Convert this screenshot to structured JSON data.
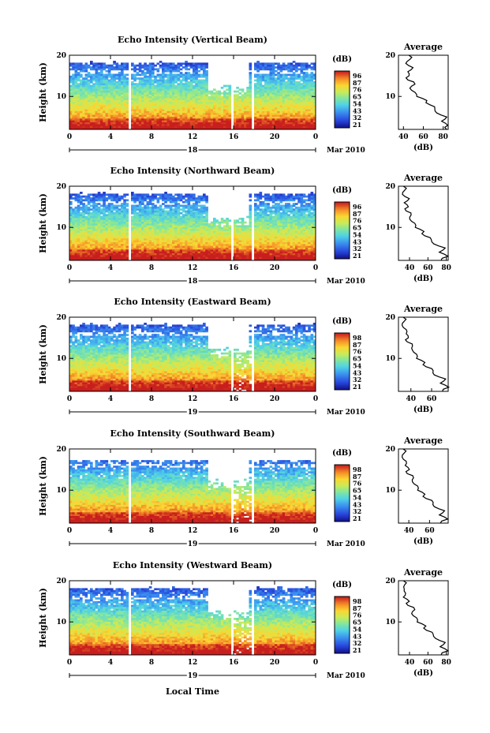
{
  "chart_data": {
    "type": "heatmap",
    "figure_xlabel": "Local Time",
    "panels": [
      {
        "title": "Echo Intensity (Vertical Beam)",
        "ylabel": "Height (km)",
        "yticks": [
          "10",
          "20"
        ],
        "ylim": [
          2,
          20
        ],
        "xticks": [
          "0",
          "4",
          "8",
          "12",
          "16",
          "20",
          "0"
        ],
        "xlim": [
          0,
          24
        ],
        "date_day": "18",
        "date_month": "Mar 2010",
        "colorbar_unit": "(dB)",
        "colorbar_ticks": [
          "96",
          "87",
          "76",
          "65",
          "54",
          "43",
          "32",
          "21"
        ],
        "gaps_hours": [
          5.9,
          15.8,
          17.9
        ],
        "avg_title": "Average",
        "avg_xlabel": "(dB)",
        "avg_xticks": [
          "40",
          "60",
          "80"
        ],
        "avg_xlim": [
          35,
          85
        ],
        "avg_profile": [
          [
            85,
            2
          ],
          [
            83,
            3
          ],
          [
            80,
            4
          ],
          [
            82,
            5
          ],
          [
            75,
            6
          ],
          [
            70,
            7
          ],
          [
            68,
            8
          ],
          [
            62,
            9
          ],
          [
            55,
            10
          ],
          [
            50,
            11
          ],
          [
            48,
            12
          ],
          [
            50,
            13
          ],
          [
            46,
            14
          ],
          [
            44,
            15
          ],
          [
            46,
            16
          ],
          [
            48,
            17
          ],
          [
            44,
            18
          ],
          [
            45,
            19
          ],
          [
            47,
            20
          ]
        ]
      },
      {
        "title": "Echo Intensity (Northward Beam)",
        "ylabel": "Height (km)",
        "yticks": [
          "10",
          "20"
        ],
        "ylim": [
          2,
          20
        ],
        "xticks": [
          "0",
          "4",
          "8",
          "12",
          "16",
          "20",
          "0"
        ],
        "xlim": [
          0,
          24
        ],
        "date_day": "18",
        "date_month": "Mar 2010",
        "colorbar_unit": "(dB)",
        "colorbar_ticks": [
          "96",
          "87",
          "76",
          "65",
          "54",
          "43",
          "32",
          "21"
        ],
        "gaps_hours": [
          5.9,
          15.8,
          17.9
        ],
        "avg_title": "Average",
        "avg_xlabel": "(dB)",
        "avg_xticks": [
          "40",
          "60",
          "80"
        ],
        "avg_xlim": [
          28,
          82
        ],
        "avg_profile": [
          [
            76,
            2
          ],
          [
            80,
            3
          ],
          [
            74,
            4
          ],
          [
            77,
            5
          ],
          [
            68,
            6
          ],
          [
            62,
            7
          ],
          [
            58,
            8
          ],
          [
            54,
            9
          ],
          [
            48,
            10
          ],
          [
            44,
            11
          ],
          [
            42,
            12
          ],
          [
            40,
            13
          ],
          [
            38,
            14
          ],
          [
            37,
            15
          ],
          [
            36,
            16
          ],
          [
            38,
            17
          ],
          [
            34,
            18
          ],
          [
            33,
            19
          ],
          [
            35,
            20
          ]
        ]
      },
      {
        "title": "Echo Intensity (Eastward Beam)",
        "ylabel": "Height (km)",
        "yticks": [
          "10",
          "20"
        ],
        "ylim": [
          2,
          20
        ],
        "xticks": [
          "0",
          "4",
          "8",
          "12",
          "16",
          "20",
          "0"
        ],
        "xlim": [
          0,
          24
        ],
        "date_day": "19",
        "date_month": "Mar 2010",
        "colorbar_unit": "(dB)",
        "colorbar_ticks": [
          "98",
          "87",
          "76",
          "65",
          "54",
          "43",
          "32",
          "21"
        ],
        "gaps_hours": [
          5.9,
          15.8,
          17.9
        ],
        "avg_title": "Average",
        "avg_xlabel": "(dB)",
        "avg_xticks": [
          "40",
          "60"
        ],
        "avg_xlim": [
          28,
          76
        ],
        "avg_profile": [
          [
            72,
            2
          ],
          [
            75,
            3
          ],
          [
            70,
            4
          ],
          [
            72,
            5
          ],
          [
            64,
            6
          ],
          [
            60,
            7
          ],
          [
            56,
            8
          ],
          [
            52,
            9
          ],
          [
            47,
            10
          ],
          [
            44,
            11
          ],
          [
            43,
            12
          ],
          [
            40,
            13
          ],
          [
            38,
            14
          ],
          [
            36,
            15
          ],
          [
            37,
            16
          ],
          [
            34,
            17
          ],
          [
            33,
            18
          ],
          [
            32,
            19
          ],
          [
            34,
            20
          ]
        ]
      },
      {
        "title": "Echo Intensity (Southward Beam)",
        "ylabel": "Height (km)",
        "yticks": [
          "10",
          "20"
        ],
        "ylim": [
          2,
          20
        ],
        "xticks": [
          "0",
          "4",
          "8",
          "12",
          "16",
          "20",
          "0"
        ],
        "xlim": [
          0,
          24
        ],
        "date_day": "19",
        "date_month": "Mar 2010",
        "colorbar_unit": "(dB)",
        "colorbar_ticks": [
          "98",
          "87",
          "76",
          "65",
          "54",
          "43",
          "32",
          "21"
        ],
        "gaps_hours": [
          5.9,
          15.8,
          17.9
        ],
        "avg_title": "Average",
        "avg_xlabel": "(dB)",
        "avg_xticks": [
          "40",
          "60"
        ],
        "avg_xlim": [
          30,
          78
        ],
        "avg_profile": [
          [
            72,
            2
          ],
          [
            76,
            3
          ],
          [
            71,
            4
          ],
          [
            73,
            5
          ],
          [
            66,
            6
          ],
          [
            62,
            7
          ],
          [
            58,
            8
          ],
          [
            54,
            9
          ],
          [
            50,
            10
          ],
          [
            47,
            11
          ],
          [
            45,
            12
          ],
          [
            43,
            13
          ],
          [
            40,
            14
          ],
          [
            39,
            15
          ],
          [
            38,
            16
          ],
          [
            36,
            17
          ],
          [
            35,
            18
          ],
          [
            34,
            19
          ],
          [
            36,
            20
          ]
        ]
      },
      {
        "title": "Echo Intensity (Westward Beam)",
        "ylabel": "Height (km)",
        "yticks": [
          "10",
          "20"
        ],
        "ylim": [
          2,
          20
        ],
        "xticks": [
          "0",
          "4",
          "8",
          "12",
          "16",
          "20",
          "0"
        ],
        "xlim": [
          0,
          24
        ],
        "date_day": "19",
        "date_month": "Mar 2010",
        "colorbar_unit": "(dB)",
        "colorbar_ticks": [
          "98",
          "87",
          "76",
          "65",
          "54",
          "43",
          "32",
          "21"
        ],
        "gaps_hours": [
          5.9,
          15.8,
          17.9
        ],
        "avg_title": "Average",
        "avg_xlabel": "(dB)",
        "avg_xticks": [
          "40",
          "60",
          "80"
        ],
        "avg_xlim": [
          28,
          82
        ],
        "avg_profile": [
          [
            76,
            2
          ],
          [
            80,
            3
          ],
          [
            75,
            4
          ],
          [
            77,
            5
          ],
          [
            70,
            6
          ],
          [
            64,
            7
          ],
          [
            60,
            8
          ],
          [
            56,
            9
          ],
          [
            50,
            10
          ],
          [
            46,
            11
          ],
          [
            44,
            12
          ],
          [
            44,
            13
          ],
          [
            40,
            14
          ],
          [
            38,
            15
          ],
          [
            35,
            16
          ],
          [
            34,
            17
          ],
          [
            36,
            18
          ],
          [
            33,
            19
          ],
          [
            35,
            20
          ]
        ]
      }
    ]
  }
}
